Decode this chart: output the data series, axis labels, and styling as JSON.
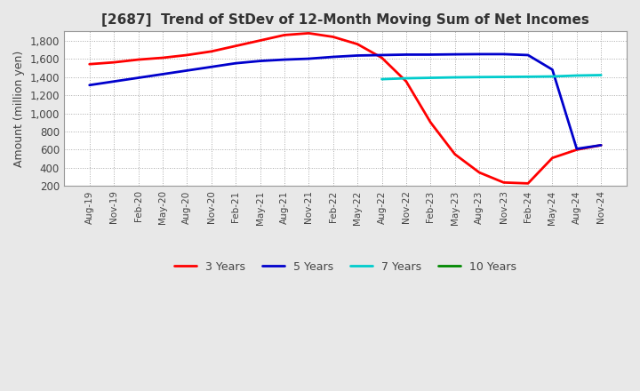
{
  "title": "[2687]  Trend of StDev of 12-Month Moving Sum of Net Incomes",
  "ylabel": "Amount (million yen)",
  "ylim": [
    200,
    1900
  ],
  "yticks": [
    200,
    400,
    600,
    800,
    1000,
    1200,
    1400,
    1600,
    1800
  ],
  "fig_background": "#e8e8e8",
  "plot_background": "#ffffff",
  "grid_color": "#aaaaaa",
  "line_colors": {
    "3 Years": "#ff0000",
    "5 Years": "#0000cc",
    "7 Years": "#00cccc",
    "10 Years": "#008800"
  },
  "x_labels": [
    "Aug-19",
    "Nov-19",
    "Feb-20",
    "May-20",
    "Aug-20",
    "Nov-20",
    "Feb-21",
    "May-21",
    "Aug-21",
    "Nov-21",
    "Feb-22",
    "May-22",
    "Aug-22",
    "Nov-22",
    "Feb-23",
    "May-23",
    "Aug-23",
    "Nov-23",
    "Feb-24",
    "May-24",
    "Aug-24",
    "Nov-24"
  ],
  "series": {
    "3 Years": [
      1540,
      1560,
      1590,
      1610,
      1640,
      1680,
      1740,
      1800,
      1860,
      1880,
      1840,
      1760,
      1610,
      1350,
      900,
      550,
      350,
      240,
      230,
      510,
      600,
      650
    ],
    "5 Years": [
      1310,
      1350,
      1390,
      1430,
      1470,
      1510,
      1550,
      1575,
      1590,
      1600,
      1620,
      1635,
      1640,
      1645,
      1645,
      1648,
      1650,
      1650,
      1640,
      1480,
      610,
      650
    ],
    "7 Years": [
      null,
      null,
      null,
      null,
      null,
      null,
      null,
      null,
      null,
      null,
      null,
      null,
      1375,
      1385,
      1390,
      1395,
      1398,
      1400,
      1402,
      1405,
      1415,
      1420
    ],
    "10 Years": [
      null,
      null,
      null,
      null,
      null,
      null,
      null,
      null,
      null,
      null,
      null,
      null,
      null,
      null,
      null,
      null,
      null,
      null,
      null,
      null,
      null,
      null
    ]
  }
}
